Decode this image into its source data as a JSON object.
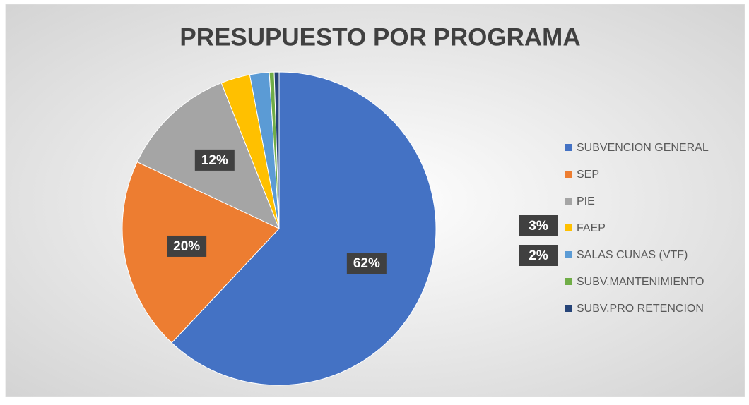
{
  "chart_data": {
    "type": "pie",
    "title": "PRESUPUESTO POR PROGRAMA",
    "categories": [
      "SUBVENCION GENERAL",
      "SEP",
      "PIE",
      "FAEP",
      "SALAS CUNAS (VTF)",
      "SUBV.MANTENIMIENTO",
      "SUBV.PRO RETENCION"
    ],
    "values": [
      62,
      20,
      12,
      3,
      2,
      0.5,
      0.5
    ],
    "value_labels": [
      "62%",
      "20%",
      "12%",
      "3%",
      "2%",
      null,
      null
    ],
    "colors": [
      "#4472c4",
      "#ed7d31",
      "#a5a5a5",
      "#ffc000",
      "#5b9bd5",
      "#70ad47",
      "#264478"
    ],
    "legend": "right"
  }
}
